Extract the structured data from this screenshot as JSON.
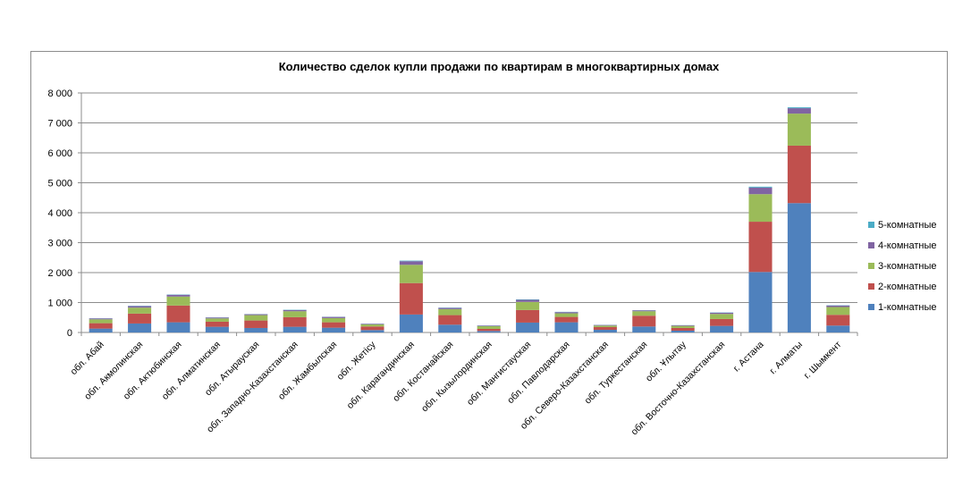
{
  "chart_data": {
    "type": "bar",
    "stacked": true,
    "title": "Количество сделок купли продажи по квартирам в многоквартирных домах",
    "xlabel": "",
    "ylabel": "",
    "ylim": [
      0,
      8000
    ],
    "yticks": [
      0,
      1000,
      2000,
      3000,
      4000,
      5000,
      6000,
      7000,
      8000
    ],
    "ytick_labels": [
      "0",
      "1 000",
      "2 000",
      "3 000",
      "4 000",
      "5 000",
      "6 000",
      "7 000",
      "8 000"
    ],
    "grid": true,
    "legend_position": "right",
    "categories": [
      "обл. Абай",
      "обл. Акмолинская",
      "обл. Актюбинская",
      "обл. Алматинская",
      "обл. Атырауская",
      "обл. Западно-Казахстанская",
      "обл. Жамбылская",
      "обл. Жетісу",
      "обл. Карагандинская",
      "обл. Костанайская",
      "обл. Кызылординская",
      "обл. Мангистауская",
      "обл. Павлодарская",
      "обл. Северо-Казахстанская",
      "обл. Туркестанская",
      "обл. Ұлытау",
      "обл. Восточно-Казахстанская",
      "г. Астана",
      "г. Алматы",
      "г. Шымкент"
    ],
    "series": [
      {
        "name": "1-комнатные",
        "color": "#4f81bd",
        "values": [
          130,
          300,
          340,
          190,
          150,
          190,
          160,
          80,
          600,
          260,
          50,
          330,
          340,
          90,
          200,
          60,
          220,
          2020,
          4320,
          230
        ]
      },
      {
        "name": "2-комнатные",
        "color": "#c0504d",
        "values": [
          180,
          330,
          560,
          170,
          250,
          320,
          180,
          120,
          1050,
          320,
          70,
          420,
          180,
          90,
          360,
          90,
          230,
          1680,
          1920,
          360
        ]
      },
      {
        "name": "3-комнатные",
        "color": "#9bbb59",
        "values": [
          130,
          200,
          300,
          110,
          180,
          200,
          140,
          70,
          610,
          200,
          90,
          270,
          120,
          50,
          150,
          70,
          170,
          920,
          1070,
          260
        ]
      },
      {
        "name": "4-комнатные",
        "color": "#8064a2",
        "values": [
          30,
          50,
          60,
          30,
          30,
          40,
          40,
          20,
          120,
          40,
          20,
          70,
          40,
          20,
          30,
          20,
          40,
          220,
          180,
          50
        ]
      },
      {
        "name": "5-комнатные",
        "color": "#4bacc6",
        "values": [
          5,
          10,
          10,
          5,
          5,
          10,
          5,
          5,
          20,
          10,
          5,
          15,
          10,
          5,
          5,
          5,
          10,
          30,
          30,
          10
        ]
      }
    ]
  }
}
